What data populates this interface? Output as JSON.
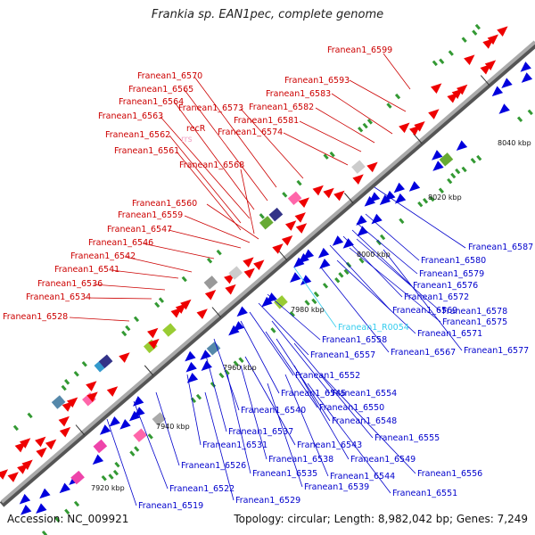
{
  "title": "Frankia sp. EAN1pec, complete genome",
  "accession": "Accession: NC_009921",
  "footer": "Topology: circular; Length: 8,982,042 bp; Genes: 7,249",
  "colors": {
    "upper_strand_label": "#cc0000",
    "lower_strand_label": "#0000cc",
    "rna_label": "#33ccee",
    "backbone": "#888888"
  },
  "scale_ticks": [
    "7920 kbp",
    "7940 kbp",
    "7960 kbp",
    "7980 kbp",
    "8000 kbp",
    "8020 kbp",
    "8040 kbp"
  ],
  "upper_labels": [
    "Franean1_6599",
    "Franean1_6593",
    "Franean1_6583",
    "Franean1_6582",
    "Franean1_6581",
    "Franean1_6574",
    "Franean1_6573",
    "Franean1_6570",
    "Franean1_6565",
    "Franean1_6564",
    "Franean1_6563",
    "Franean1_6562",
    "Franean1_6561",
    "recR",
    "Franean1_6568",
    "Franean1_6560",
    "Franean1_6559",
    "Franean1_6547",
    "Franean1_6546",
    "Franean1_6542",
    "Franean1_6541",
    "Franean1_6536",
    "Franean1_6534",
    "Franean1_6528"
  ],
  "faint_label": "rrs",
  "lower_labels": [
    "Franean1_6587",
    "Franean1_6580",
    "Franean1_6579",
    "Franean1_6576",
    "Franean1_6572",
    "Franean1_6569",
    "Franean1_6578",
    "Franean1_6575",
    "Franean1_6571",
    "Franean1_6577",
    "Franean1_6567",
    "Franean1_6558",
    "Franean1_6557",
    "Franean1_6552",
    "Franean1_6545",
    "Franean1_6554",
    "Franean1_6550",
    "Franean1_6540",
    "Franean1_6548",
    "Franean1_6537",
    "Franean1_6555",
    "Franean1_6543",
    "Franean1_6531",
    "Franean1_6538",
    "Franean1_6549",
    "Franean1_6526",
    "Franean1_6535",
    "Franean1_6544",
    "Franean1_6539",
    "Franean1_6556",
    "Franean1_6522",
    "Franean1_6551",
    "Franean1_6529",
    "Franean1_6519"
  ],
  "rna_labels": [
    "Franean1_R0054"
  ]
}
